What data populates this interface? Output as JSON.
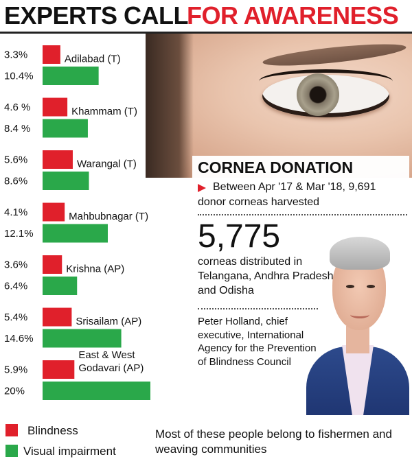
{
  "headline": {
    "part1": "EXPERTS CALL",
    "part2": "FOR AWARENESS"
  },
  "colors": {
    "blindness": "#e0202b",
    "visual_impairment": "#2aa84a",
    "accent": "#e0202b"
  },
  "chart_data": {
    "type": "bar",
    "orientation": "horizontal",
    "categories": [
      "Adilabad (T)",
      "Khammam (T)",
      "Warangal (T)",
      "Mahbubnagar (T)",
      "Krishna (AP)",
      "Srisailam (AP)",
      "East & West Godavari (AP)"
    ],
    "category_label_lines": [
      [
        "Adilabad (T)"
      ],
      [
        "Khammam (T)"
      ],
      [
        "Warangal (T)"
      ],
      [
        "Mahbubnagar (T)"
      ],
      [
        "Krishna (AP)"
      ],
      [
        "Srisailam (AP)"
      ],
      [
        "East & West",
        "Godavari (AP)"
      ]
    ],
    "series": [
      {
        "name": "Blindness",
        "values": [
          3.3,
          4.6,
          5.6,
          4.1,
          3.6,
          5.4,
          5.9
        ],
        "labels": [
          "3.3%",
          "4.6 %",
          "5.6%",
          "4.1%",
          "3.6%",
          "5.4%",
          "5.9%"
        ]
      },
      {
        "name": "Visual impairment",
        "values": [
          10.4,
          8.4,
          8.6,
          12.1,
          6.4,
          14.6,
          20
        ],
        "labels": [
          "10.4%",
          "8.4 %",
          "8.6%",
          "12.1%",
          "6.4%",
          "14.6%",
          "20%"
        ]
      }
    ],
    "legend": "bottom-left",
    "grid": false
  },
  "legend": {
    "blindness": "Blindness",
    "visual_impairment": "Visual impairment"
  },
  "footnote": "Most of these people belong to fishermen and weaving communities",
  "info_box": {
    "title": "CORNEA DONATION",
    "period_text": "Between Apr '17 & Mar '18, 9,691 donor corneas harvested",
    "big_number": "5,775",
    "distribution_text": "corneas distributed in Telangana, Andhra Pradesh and Odisha",
    "quote_attribution": "Peter Holland, chief executive, International Agency for the Prevention of Blindness Council"
  }
}
